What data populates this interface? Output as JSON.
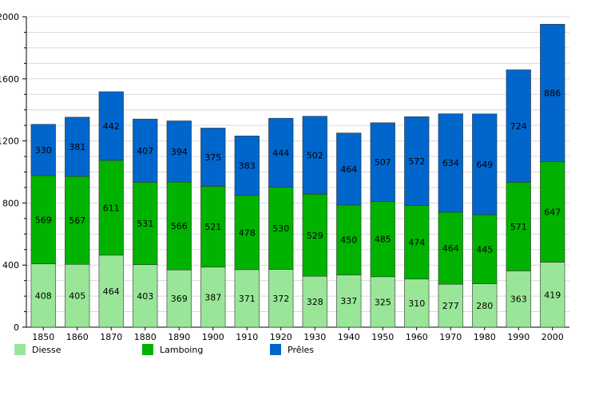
{
  "chart_data": {
    "type": "bar",
    "stacked": true,
    "title": "",
    "xlabel": "",
    "ylabel": "",
    "categories": [
      "1850",
      "1860",
      "1870",
      "1880",
      "1890",
      "1900",
      "1910",
      "1920",
      "1930",
      "1940",
      "1950",
      "1960",
      "1970",
      "1980",
      "1990",
      "2000"
    ],
    "series": [
      {
        "name": "Diesse",
        "color": "#99e699",
        "values": [
          408,
          405,
          464,
          403,
          369,
          387,
          371,
          372,
          328,
          337,
          325,
          310,
          277,
          280,
          363,
          419
        ]
      },
      {
        "name": "Lamboing",
        "color": "#00b300",
        "values": [
          569,
          567,
          611,
          531,
          566,
          521,
          478,
          530,
          529,
          450,
          485,
          474,
          464,
          445,
          571,
          647
        ]
      },
      {
        "name": "Prêles",
        "color": "#0066cc",
        "values": [
          330,
          381,
          442,
          407,
          394,
          375,
          383,
          444,
          502,
          464,
          507,
          572,
          634,
          649,
          724,
          886
        ]
      }
    ],
    "ylim": [
      0,
      2000
    ],
    "yticks": [
      0,
      400,
      800,
      1200,
      1600,
      2000
    ],
    "grid": true,
    "legend_position": "bottom"
  }
}
